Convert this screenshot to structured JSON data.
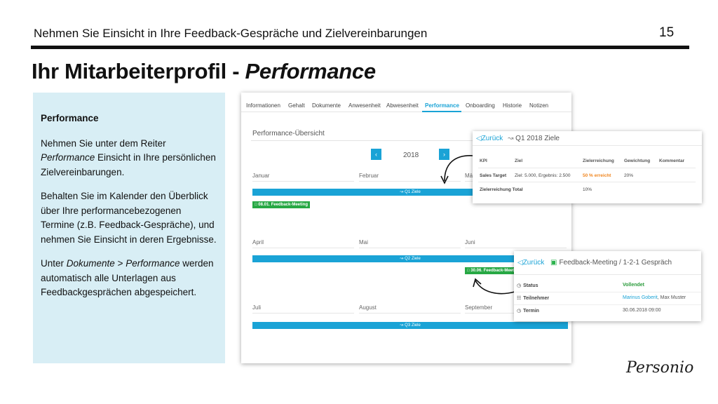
{
  "header": {
    "title": "Nehmen Sie Einsicht in Ihre Feedback-Gespräche und Zielvereinbarungen",
    "page_number": "15"
  },
  "slide": {
    "title_main": "Ihr Mitarbeiterprofil - ",
    "title_italic": "Performance"
  },
  "info_box": {
    "heading": "Performance",
    "p1_a": "Nehmen Sie unter dem Reiter ",
    "p1_em": "Performance",
    "p1_b": " Einsicht in Ihre persönlichen Zielvereinbarungen.",
    "p2": "Behalten Sie im Kalender den Überblick über Ihre performancebezogenen Termine (z.B. Feedback-Gespräche), und nehmen Sie Einsicht in deren Ergebnisse.",
    "p3_a": "Unter ",
    "p3_em1": "Dokumente",
    "p3_mid": " > ",
    "p3_em2": "Performance",
    "p3_b": " werden automatisch alle Unterlagen aus Feedbackgesprächen abgespeichert."
  },
  "tabs": [
    "Informationen",
    "Gehalt",
    "Dokumente",
    "Anwesenheit",
    "Abwesenheit",
    "Performance",
    "Onboarding",
    "Historie",
    "Notizen"
  ],
  "overview": {
    "title": "Performance-Übersicht",
    "year": "2018",
    "months": [
      "Januar",
      "Februar",
      "März",
      "April",
      "Mai",
      "Juni",
      "Juli",
      "August",
      "September"
    ],
    "quarters": [
      "Q1 Ziele",
      "Q2 Ziele",
      "Q3 Ziele"
    ],
    "events": [
      "08.01. Feedback-Meeting",
      "30.06. Feedback-Meet..."
    ]
  },
  "goals_card": {
    "back": "Zurück",
    "title": "Q1 2018 Ziele",
    "columns": [
      "KPI",
      "Ziel",
      "Zielerreichung",
      "Gewichtung",
      "Kommentar"
    ],
    "row": {
      "kpi": "Sales Target",
      "ziel": "Ziel: 5.000, Ergebnis: 2.500",
      "achievement": "50 % erreicht",
      "weight": "20%"
    },
    "total_label": "Zielerreichung Total",
    "total_value": "10%"
  },
  "meeting_card": {
    "back": "Zurück",
    "title": "Feedback-Meeting / 1-2-1 Gespräch",
    "status_label": "Status",
    "status_value": "Vollendet",
    "participants_label": "Teilnehmer",
    "participant_link": "Marinus Goberit",
    "participant_rest": ", Max Muster",
    "date_label": "Termin",
    "date_value": "30.06.2018 09:00"
  },
  "logo": {
    "text": "Personio"
  },
  "colors": {
    "accent_blue": "#1aa3d6",
    "event_green": "#27a844",
    "warning_orange": "#f0851e",
    "info_box_bg": "#d8eef5"
  }
}
